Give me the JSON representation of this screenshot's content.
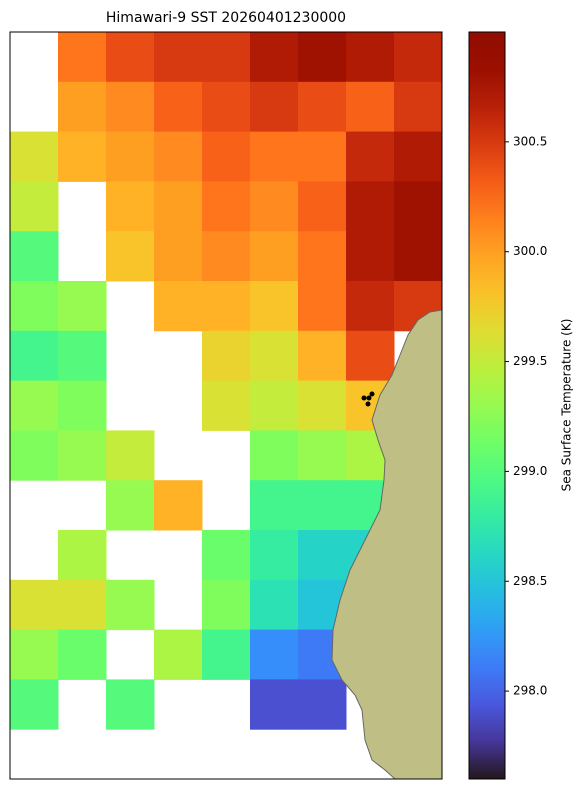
{
  "chart_data": {
    "type": "heatmap",
    "title": "Himawari-9 SST 20260401230000",
    "colorbar_label": "Sea Surface Temperature (K)",
    "colormap": "turbo",
    "clim": [
      297.6,
      301.0
    ],
    "cticks": [
      {
        "value": 298.0,
        "label": "298.0"
      },
      298.5,
      {
        "value": 299.0,
        "label": "299.0"
      },
      299.5,
      {
        "value": 300.0,
        "label": "300.0"
      },
      300.5
    ],
    "values": [
      [
        null,
        300.2,
        300.4,
        300.5,
        300.5,
        300.7,
        300.8,
        300.7,
        300.6
      ],
      [
        null,
        300.0,
        300.1,
        300.3,
        300.4,
        300.5,
        300.4,
        300.3,
        300.5
      ],
      [
        299.6,
        299.9,
        300.0,
        300.1,
        300.3,
        300.2,
        300.2,
        300.6,
        300.7
      ],
      [
        299.5,
        null,
        299.9,
        300.0,
        300.2,
        300.1,
        300.3,
        300.7,
        300.8
      ],
      [
        299.0,
        null,
        299.8,
        300.0,
        300.1,
        300.0,
        300.2,
        300.7,
        300.8
      ],
      [
        299.2,
        299.3,
        null,
        299.9,
        299.9,
        299.8,
        300.2,
        300.6,
        300.5
      ],
      [
        298.9,
        299.0,
        null,
        null,
        299.7,
        299.6,
        299.9,
        300.4,
        null
      ],
      [
        299.3,
        299.2,
        null,
        null,
        299.6,
        299.5,
        299.6,
        299.8,
        null
      ],
      [
        299.2,
        299.3,
        299.5,
        null,
        null,
        299.2,
        299.3,
        299.4,
        null
      ],
      [
        null,
        null,
        299.3,
        299.9,
        null,
        298.9,
        298.9,
        298.9,
        null
      ],
      [
        null,
        299.4,
        null,
        null,
        299.1,
        298.8,
        298.6,
        298.6,
        null
      ],
      [
        299.6,
        299.6,
        299.3,
        null,
        299.2,
        298.7,
        298.5,
        null,
        null
      ],
      [
        299.3,
        299.1,
        null,
        299.4,
        298.9,
        298.2,
        298.1,
        null,
        null
      ],
      [
        299.0,
        null,
        299.0,
        null,
        null,
        297.9,
        297.9,
        null,
        null
      ],
      [
        null,
        null,
        null,
        null,
        null,
        null,
        null,
        null,
        null
      ]
    ]
  }
}
